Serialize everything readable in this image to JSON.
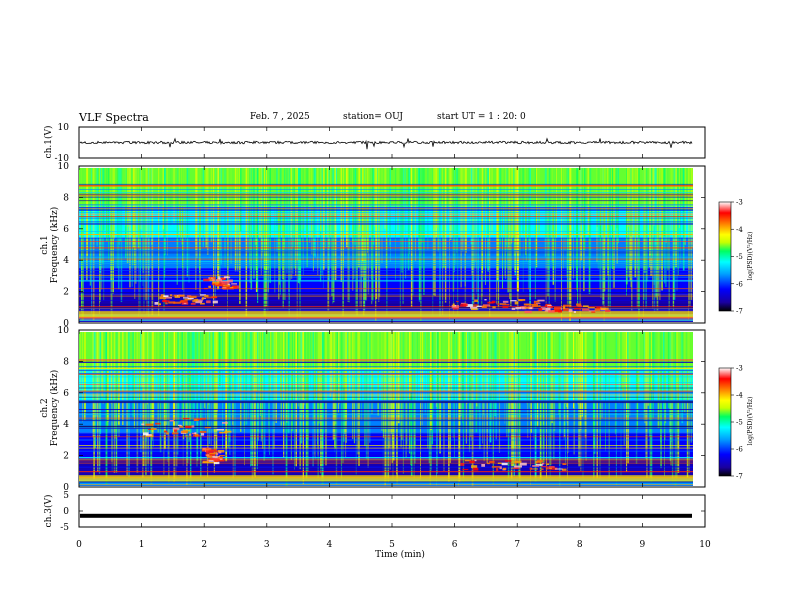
{
  "header": {
    "title": "VLF Spectra",
    "date": "Feb. 7 , 2025",
    "station": "station= OUJ",
    "start_ut": "start  UT =   1 : 20: 0"
  },
  "chart_data": [
    {
      "type": "line",
      "panel": "ch1-waveform",
      "ylabel": "ch.1(V)",
      "ylim": [
        -10,
        10
      ],
      "yticks": [
        10,
        -10
      ],
      "baseline_value": 0
    },
    {
      "type": "heatmap",
      "panel": "ch1-spectrogram",
      "ylabel_top": "ch.1",
      "ylabel": "Frequency  (kHz)",
      "ylim": [
        0,
        10
      ],
      "yticks": [
        0,
        2,
        4,
        6,
        8,
        10
      ],
      "colorbar": {
        "label": "log(PSD)(V²/Hz)",
        "ticks": [
          -3,
          -4,
          -5,
          -6,
          -7
        ],
        "range": [
          -7,
          -3
        ]
      }
    },
    {
      "type": "heatmap",
      "panel": "ch2-spectrogram",
      "ylabel_top": "ch.2",
      "ylabel": "Frequency  (kHz)",
      "ylim": [
        0,
        10
      ],
      "yticks": [
        0,
        2,
        4,
        6,
        8,
        10
      ],
      "colorbar": {
        "label": "log(PSD)(V²/Hz)",
        "ticks": [
          -3,
          -4,
          -5,
          -6,
          -7
        ],
        "range": [
          -7,
          -3
        ]
      }
    },
    {
      "type": "line",
      "panel": "ch3-waveform",
      "ylabel": "ch.3(V)",
      "ylim": [
        -5,
        5
      ],
      "yticks": [
        5,
        0,
        -5
      ],
      "level": -1.5
    }
  ],
  "xaxis": {
    "label": "Time  (min)",
    "range": [
      0,
      10
    ],
    "ticks": [
      0,
      1,
      2,
      3,
      4,
      5,
      6,
      7,
      8,
      9,
      10
    ]
  },
  "colors": {
    "colormap": [
      "#000000",
      "#1a00a0",
      "#0000ff",
      "#00a0ff",
      "#00ffff",
      "#00ff60",
      "#c8ff00",
      "#ffff00",
      "#ff8000",
      "#ff0000",
      "#ffffff"
    ]
  }
}
